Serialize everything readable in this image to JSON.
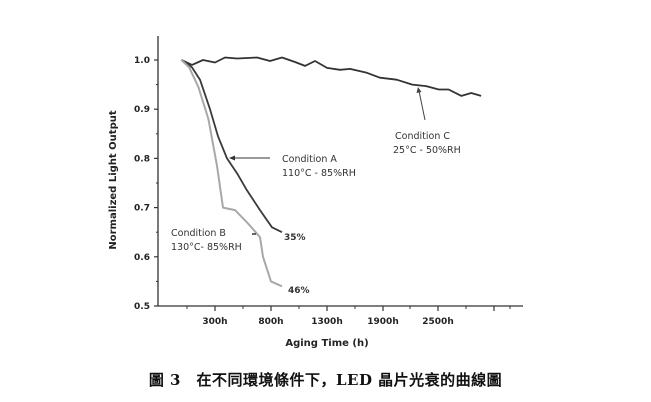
{
  "chart_data": {
    "type": "line",
    "title": "",
    "xlabel": "Aging Time (h)",
    "ylabel": "Normalized Light Output",
    "x_ticks": [
      "300h",
      "800h",
      "1300h",
      "1900h",
      "2500h"
    ],
    "x_tick_values": [
      300,
      800,
      1300,
      1900,
      2500
    ],
    "y_ticks": [
      "0.5",
      "0.6",
      "0.7",
      "0.8",
      "0.9",
      "1.0"
    ],
    "ylim": [
      0.5,
      1.05
    ],
    "grid": false,
    "series": [
      {
        "name": "Condition C",
        "detail": "25°C - 50%RH",
        "color": "#333333",
        "x": [
          0,
          95,
          193,
          300,
          389,
          496,
          675,
          791,
          898,
          1014,
          1104,
          1193,
          1300,
          1439,
          1546,
          1728,
          1867,
          2049,
          2220,
          2370,
          2509,
          2616,
          2755,
          2862,
          2970
        ],
        "y": [
          1.0,
          0.99,
          1.0,
          0.995,
          1.005,
          1.003,
          1.005,
          0.998,
          1.005,
          0.996,
          0.988,
          0.998,
          0.984,
          0.98,
          0.982,
          0.974,
          0.964,
          0.96,
          0.95,
          0.947,
          0.94,
          0.94,
          0.927,
          0.933,
          0.927
        ]
      },
      {
        "name": "Condition A",
        "detail": "110°C - 85%RH",
        "color": "#3a3a3a",
        "end_label": "35%",
        "x": [
          0,
          95,
          166,
          255,
          327,
          407,
          496,
          586,
          702,
          809,
          898
        ],
        "y": [
          1.0,
          0.985,
          0.96,
          0.9,
          0.845,
          0.8,
          0.77,
          0.735,
          0.695,
          0.66,
          0.65
        ]
      },
      {
        "name": "Condition B",
        "detail": "130°C- 85%RH",
        "color": "#a8a8a8",
        "end_label": "46%",
        "x": [
          0,
          70,
          152,
          241,
          318,
          371,
          479,
          586,
          702,
          729,
          800,
          898
        ],
        "y": [
          1.0,
          0.985,
          0.945,
          0.88,
          0.785,
          0.7,
          0.695,
          0.67,
          0.64,
          0.6,
          0.55,
          0.54
        ]
      }
    ]
  },
  "caption": "圖 3　在不同環境條件下，LED 晶片光衰的曲線圖"
}
